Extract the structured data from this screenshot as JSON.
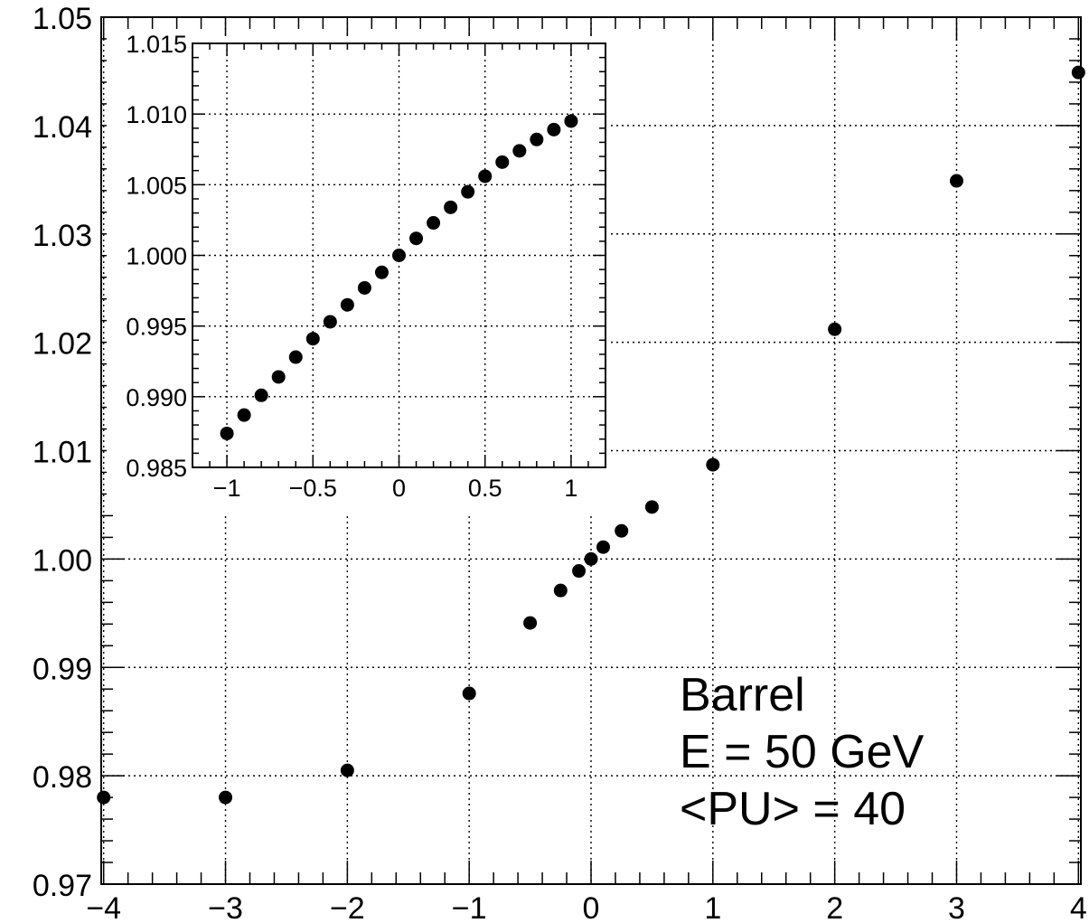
{
  "chart_data": [
    {
      "type": "scatter",
      "title": "",
      "xlabel": "",
      "ylabel": "",
      "xlim": [
        -4.02,
        4.02
      ],
      "ylim": [
        0.97,
        1.05
      ],
      "grid": true,
      "x_ticks": [
        -4,
        -3,
        -2,
        -1,
        0,
        1,
        2,
        3,
        4
      ],
      "x_tick_labels": [
        "−4",
        "−3",
        "−2",
        "−1",
        "0",
        "1",
        "2",
        "3",
        "4"
      ],
      "y_ticks": [
        0.97,
        0.98,
        0.99,
        1.0,
        1.01,
        1.02,
        1.03,
        1.04,
        1.05
      ],
      "y_tick_labels": [
        "0.97",
        "0.98",
        "0.99",
        "1.00",
        "1.01",
        "1.02",
        "1.03",
        "1.04",
        "1.05"
      ],
      "annotations": [
        "Barrel",
        "E = 50 GeV",
        "<PU> = 40"
      ],
      "series": [
        {
          "x": [
            -4,
            -3,
            -2,
            -1,
            -0.5,
            -0.25,
            -0.1,
            0,
            0.1,
            0.25,
            0.5,
            1,
            2,
            3,
            4
          ],
          "y": [
            0.978,
            0.978,
            0.9805,
            0.9876,
            0.9941,
            0.9971,
            0.9989,
            1.0,
            1.0011,
            1.0026,
            1.0048,
            1.0087,
            1.0212,
            1.0349,
            1.0449
          ]
        }
      ]
    },
    {
      "type": "scatter",
      "title": "",
      "xlabel": "",
      "ylabel": "",
      "xlim": [
        -1.2,
        1.2
      ],
      "ylim": [
        0.985,
        1.015
      ],
      "grid": true,
      "x_ticks": [
        -1,
        -0.5,
        0,
        0.5,
        1
      ],
      "x_tick_labels": [
        "−1",
        "−0.5",
        "0",
        "0.5",
        "1"
      ],
      "y_ticks": [
        0.985,
        0.99,
        0.995,
        1.0,
        1.005,
        1.01,
        1.015
      ],
      "y_tick_labels": [
        "0.985",
        "0.990",
        "0.995",
        "1.000",
        "1.005",
        "1.010",
        "1.015"
      ],
      "series": [
        {
          "x": [
            -1,
            -0.9,
            -0.8,
            -0.7,
            -0.6,
            -0.5,
            -0.4,
            -0.3,
            -0.2,
            -0.1,
            0,
            0.1,
            0.2,
            0.3,
            0.4,
            0.5,
            0.6,
            0.7,
            0.8,
            0.9,
            1
          ],
          "y": [
            0.9874,
            0.9887,
            0.9901,
            0.9914,
            0.9928,
            0.9941,
            0.9953,
            0.9965,
            0.9977,
            0.9988,
            1.0,
            1.0012,
            1.0023,
            1.0034,
            1.0045,
            1.0056,
            1.0066,
            1.0074,
            1.0082,
            1.0089,
            1.0095
          ]
        }
      ]
    }
  ]
}
